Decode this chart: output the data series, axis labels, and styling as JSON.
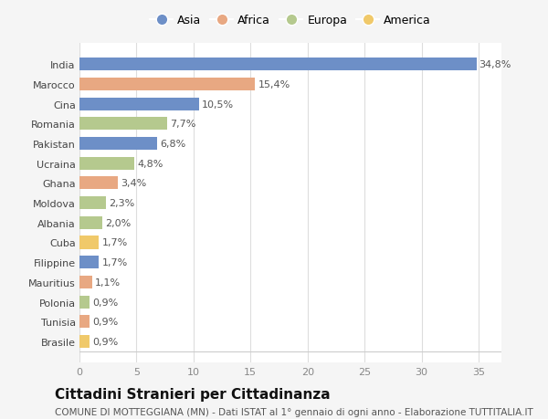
{
  "countries": [
    "India",
    "Marocco",
    "Cina",
    "Romania",
    "Pakistan",
    "Ucraina",
    "Ghana",
    "Moldova",
    "Albania",
    "Cuba",
    "Filippine",
    "Mauritius",
    "Polonia",
    "Tunisia",
    "Brasile"
  ],
  "values": [
    34.8,
    15.4,
    10.5,
    7.7,
    6.8,
    4.8,
    3.4,
    2.3,
    2.0,
    1.7,
    1.7,
    1.1,
    0.9,
    0.9,
    0.9
  ],
  "labels": [
    "34,8%",
    "15,4%",
    "10,5%",
    "7,7%",
    "6,8%",
    "4,8%",
    "3,4%",
    "2,3%",
    "2,0%",
    "1,7%",
    "1,7%",
    "1,1%",
    "0,9%",
    "0,9%",
    "0,9%"
  ],
  "continents": [
    "Asia",
    "Africa",
    "Asia",
    "Europa",
    "Asia",
    "Europa",
    "Africa",
    "Europa",
    "Europa",
    "America",
    "Asia",
    "Africa",
    "Europa",
    "Africa",
    "America"
  ],
  "colors": {
    "Asia": "#6d8fc7",
    "Africa": "#e8a882",
    "Europa": "#b5c98e",
    "America": "#f0c96a"
  },
  "legend_order": [
    "Asia",
    "Africa",
    "Europa",
    "America"
  ],
  "title": "Cittadini Stranieri per Cittadinanza",
  "subtitle": "COMUNE DI MOTTEGGIANA (MN) - Dati ISTAT al 1° gennaio di ogni anno - Elaborazione TUTTITALIA.IT",
  "xlim": [
    0,
    37
  ],
  "xticks": [
    0,
    5,
    10,
    15,
    20,
    25,
    30,
    35
  ],
  "bg_color": "#f5f5f5",
  "bar_bg_color": "#ffffff",
  "grid_color": "#dddddd",
  "label_fontsize": 8.0,
  "tick_fontsize": 8.0,
  "title_fontsize": 11,
  "subtitle_fontsize": 7.5,
  "legend_fontsize": 9
}
